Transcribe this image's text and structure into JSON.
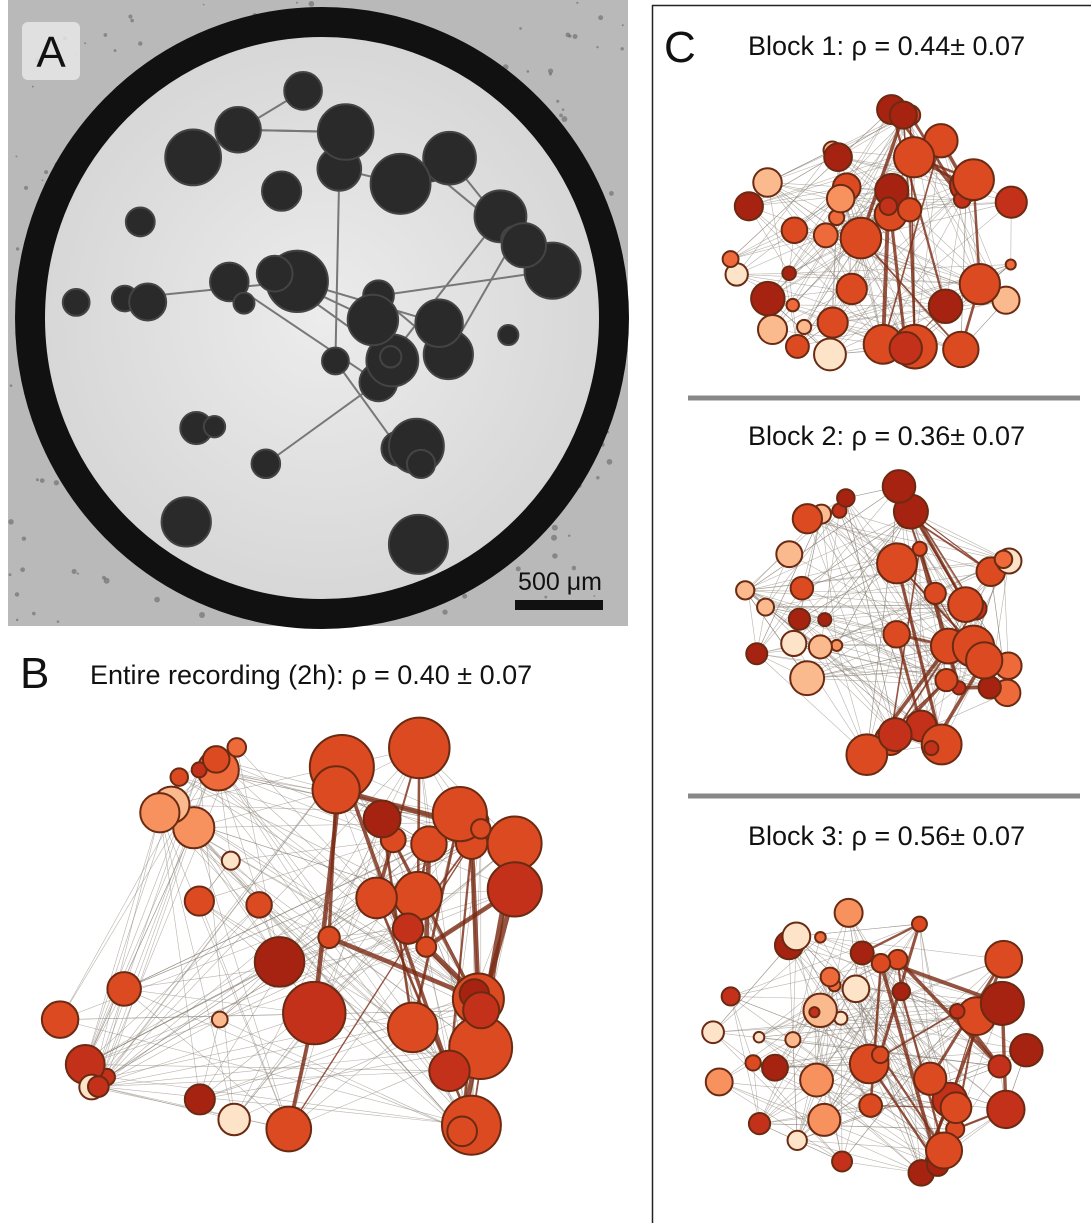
{
  "panels": [
    {
      "label": "A",
      "scale_bar": "500 μm"
    },
    {
      "label": "B",
      "title": "Entire recording (2h): ρ = 0.40 ± 0.07"
    },
    {
      "label": "C",
      "blocks": [
        {
          "title": "Block 1: ρ = 0.44± 0.07"
        },
        {
          "title": "Block 2: ρ = 0.36± 0.07"
        },
        {
          "title": "Block 3: ρ = 0.56± 0.07"
        }
      ]
    }
  ]
}
